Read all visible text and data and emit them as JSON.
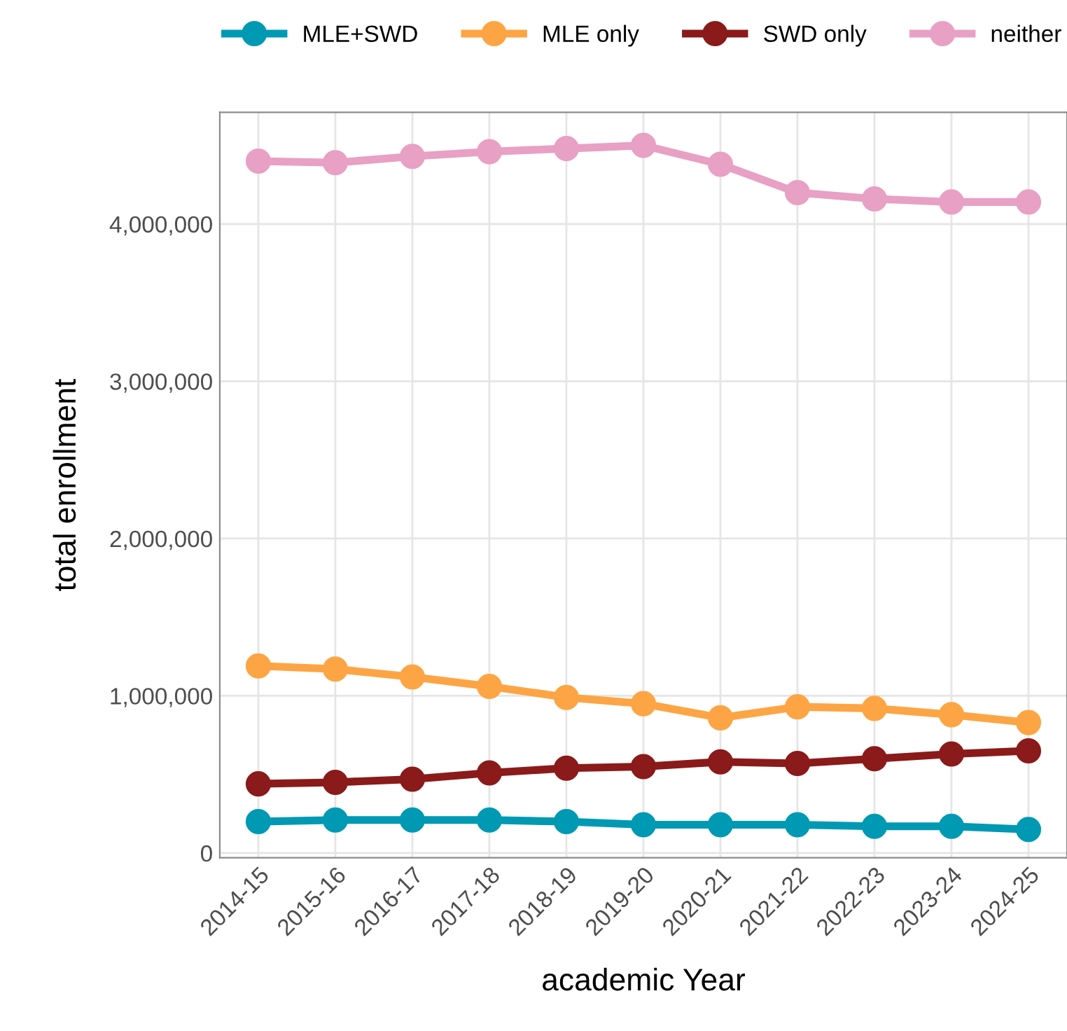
{
  "chart_data": {
    "type": "line",
    "xlabel": "academic Year",
    "ylabel": "total enrollment",
    "categories": [
      "2014-15",
      "2015-16",
      "2016-17",
      "2017-18",
      "2018-19",
      "2019-20",
      "2020-21",
      "2021-22",
      "2022-23",
      "2023-24",
      "2024-25"
    ],
    "series": [
      {
        "name": "MLE+SWD",
        "color": "#0099b4",
        "values": [
          200000,
          210000,
          210000,
          210000,
          200000,
          180000,
          180000,
          180000,
          170000,
          170000,
          150000
        ]
      },
      {
        "name": "MLE only",
        "color": "#fda544",
        "values": [
          1190000,
          1170000,
          1120000,
          1060000,
          990000,
          950000,
          860000,
          930000,
          920000,
          880000,
          830000
        ]
      },
      {
        "name": "SWD only",
        "color": "#8b1a1a",
        "values": [
          440000,
          450000,
          470000,
          510000,
          540000,
          550000,
          580000,
          570000,
          600000,
          630000,
          650000
        ]
      },
      {
        "name": "neither",
        "color": "#e8a0c4",
        "values": [
          4400000,
          4390000,
          4430000,
          4460000,
          4480000,
          4500000,
          4380000,
          4200000,
          4160000,
          4140000,
          4140000
        ]
      }
    ],
    "ylim": [
      -30000,
      4710000
    ],
    "yticks": [
      {
        "value": 0,
        "label": "0"
      },
      {
        "value": 1000000,
        "label": "1,000,000"
      },
      {
        "value": 2000000,
        "label": "2,000,000"
      },
      {
        "value": 3000000,
        "label": "3,000,000"
      },
      {
        "value": 4000000,
        "label": "4,000,000"
      }
    ],
    "grid": true,
    "legend": "top",
    "marker": "circle",
    "line_style": "solid"
  }
}
